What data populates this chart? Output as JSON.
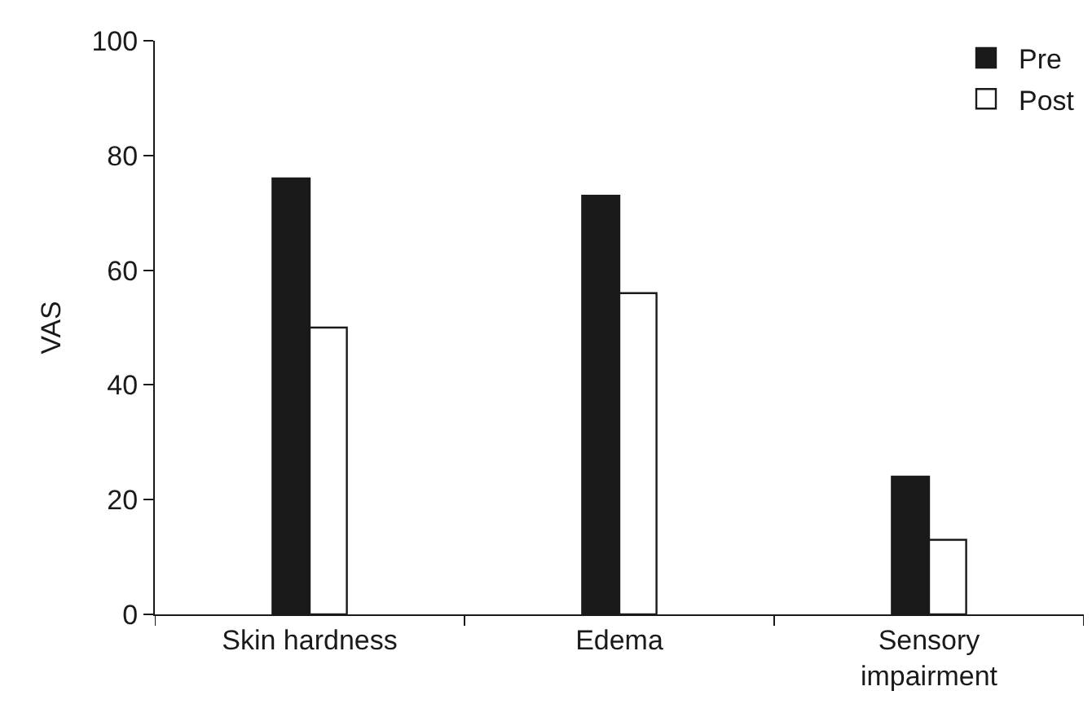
{
  "chart_data": {
    "type": "bar",
    "ylabel": "VAS",
    "categories": [
      "Skin hardness",
      "Edema",
      "Sensory impairment"
    ],
    "series": [
      {
        "name": "Pre",
        "color": "#1a1a1a",
        "values": [
          76,
          73,
          24
        ]
      },
      {
        "name": "Post",
        "color": "#ffffff",
        "values": [
          50,
          56,
          13
        ]
      }
    ],
    "ylim": [
      0,
      100
    ],
    "yticks": [
      0,
      20,
      40,
      60,
      80,
      100
    ],
    "grid": false,
    "legend": "top right"
  }
}
